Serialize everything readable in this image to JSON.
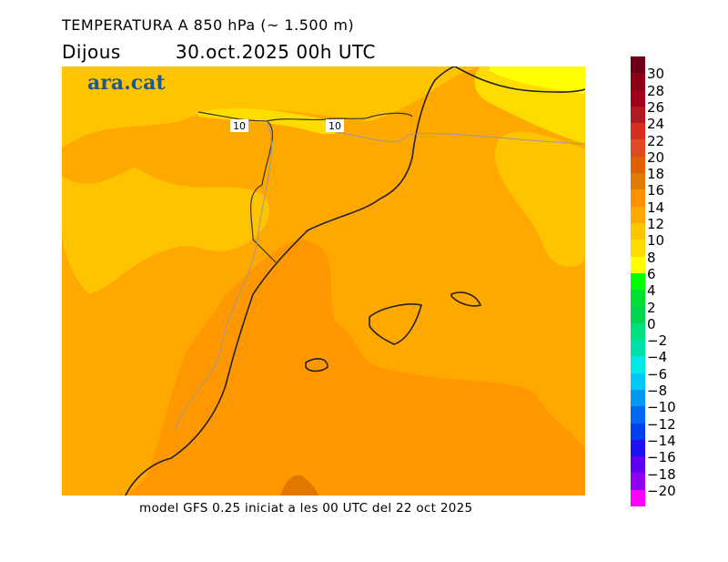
{
  "title": "TEMPERATURA A 850 hPa (~ 1.500 m)",
  "day": "Dijous",
  "datetime": "30.oct.2025 00h UTC",
  "logo": "ara.cat",
  "footer": "model GFS 0.25 iniciat a les 00 UTC del 22 oct 2025",
  "contour_labels": [
    "10",
    "10"
  ],
  "colorbar": {
    "labels": [
      "30",
      "28",
      "26",
      "24",
      "22",
      "20",
      "18",
      "16",
      "14",
      "12",
      "10",
      "8",
      "6",
      "4",
      "2",
      "0",
      "−2",
      "−4",
      "−6",
      "−8",
      "−10",
      "−12",
      "−14",
      "−16",
      "−18",
      "−20"
    ],
    "colors": [
      "#6e0016",
      "#8c0018",
      "#a0001c",
      "#b01a20",
      "#d82e22",
      "#e04a22",
      "#e06000",
      "#e07a00",
      "#ff9000",
      "#ffa800",
      "#ffc400",
      "#ffdc00",
      "#ffff00",
      "#00ff00",
      "#00e030",
      "#00d450",
      "#00e080",
      "#00e0a8",
      "#00e8e8",
      "#00c8f8",
      "#0098f0",
      "#0068f0",
      "#0040f0",
      "#2010f0",
      "#6000f0",
      "#9000f0",
      "#ff00ff"
    ]
  }
}
